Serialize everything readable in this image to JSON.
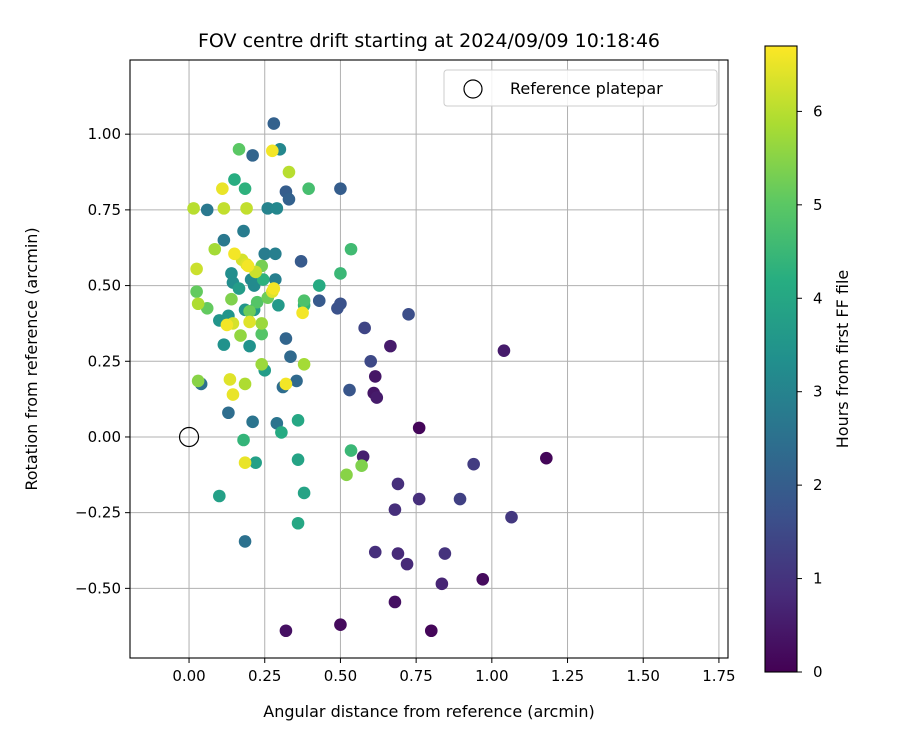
{
  "chart_data": {
    "type": "scatter",
    "title": "FOV centre drift starting at 2024/09/09 10:18:46",
    "xlabel": "Angular distance from reference (arcmin)",
    "ylabel": "Rotation from reference (arcmin)",
    "xlim": [
      -0.195,
      1.78
    ],
    "ylim": [
      -0.73,
      1.245
    ],
    "xticks": [
      0.0,
      0.25,
      0.5,
      0.75,
      1.0,
      1.25,
      1.5,
      1.75
    ],
    "xtick_labels": [
      "0.00",
      "0.25",
      "0.50",
      "0.75",
      "1.00",
      "1.25",
      "1.50",
      "1.75"
    ],
    "yticks": [
      -0.5,
      -0.25,
      0.0,
      0.25,
      0.5,
      0.75,
      1.0
    ],
    "ytick_labels": [
      "−0.50",
      "−0.25",
      "0.00",
      "0.25",
      "0.50",
      "0.75",
      "1.00"
    ],
    "grid": true,
    "legend": {
      "position": "top-right",
      "entries": [
        {
          "label": "Reference platepar",
          "marker": "open-circle"
        }
      ]
    },
    "reference_point": {
      "x": 0.0,
      "y": 0.0
    },
    "colorbar": {
      "label": "Hours from first FF file",
      "colormap": "viridis",
      "range": [
        0,
        6.7
      ],
      "ticks": [
        0,
        1,
        2,
        3,
        4,
        5,
        6
      ],
      "tick_labels": [
        "0",
        "1",
        "2",
        "3",
        "4",
        "5",
        "6"
      ]
    },
    "points": [
      {
        "x": 0.76,
        "y": 0.03,
        "h": 0.1
      },
      {
        "x": 1.18,
        "y": -0.07,
        "h": 0.1
      },
      {
        "x": 0.97,
        "y": -0.47,
        "h": 0.2
      },
      {
        "x": 0.8,
        "y": -0.64,
        "h": 0.1
      },
      {
        "x": 0.5,
        "y": -0.62,
        "h": 0.2
      },
      {
        "x": 0.32,
        "y": -0.64,
        "h": 0.3
      },
      {
        "x": 0.68,
        "y": -0.545,
        "h": 0.3
      },
      {
        "x": 0.615,
        "y": 0.2,
        "h": 0.4
      },
      {
        "x": 0.61,
        "y": 0.145,
        "h": 0.4
      },
      {
        "x": 0.62,
        "y": 0.13,
        "h": 0.5
      },
      {
        "x": 0.665,
        "y": 0.3,
        "h": 0.5
      },
      {
        "x": 1.04,
        "y": 0.285,
        "h": 0.5
      },
      {
        "x": 0.575,
        "y": -0.065,
        "h": 0.6
      },
      {
        "x": 0.835,
        "y": -0.485,
        "h": 0.7
      },
      {
        "x": 0.69,
        "y": -0.385,
        "h": 0.8
      },
      {
        "x": 0.72,
        "y": -0.42,
        "h": 0.8
      },
      {
        "x": 0.68,
        "y": -0.24,
        "h": 0.9
      },
      {
        "x": 0.69,
        "y": -0.155,
        "h": 0.9
      },
      {
        "x": 0.76,
        "y": -0.205,
        "h": 0.9
      },
      {
        "x": 0.615,
        "y": -0.38,
        "h": 0.9
      },
      {
        "x": 0.845,
        "y": -0.385,
        "h": 1.0
      },
      {
        "x": 1.065,
        "y": -0.265,
        "h": 1.1
      },
      {
        "x": 0.94,
        "y": -0.09,
        "h": 1.2
      },
      {
        "x": 0.895,
        "y": -0.205,
        "h": 1.3
      },
      {
        "x": 0.58,
        "y": 0.36,
        "h": 1.4
      },
      {
        "x": 0.6,
        "y": 0.25,
        "h": 1.5
      },
      {
        "x": 0.725,
        "y": 0.405,
        "h": 1.6
      },
      {
        "x": 0.5,
        "y": 0.44,
        "h": 1.7
      },
      {
        "x": 0.49,
        "y": 0.425,
        "h": 1.7
      },
      {
        "x": 0.53,
        "y": 0.155,
        "h": 1.8
      },
      {
        "x": 0.43,
        "y": 0.45,
        "h": 1.9
      },
      {
        "x": 0.37,
        "y": 0.58,
        "h": 1.9
      },
      {
        "x": 0.5,
        "y": 0.82,
        "h": 2.0
      },
      {
        "x": 0.32,
        "y": 0.81,
        "h": 2.0
      },
      {
        "x": 0.33,
        "y": 0.785,
        "h": 2.1
      },
      {
        "x": 0.28,
        "y": 1.035,
        "h": 2.1
      },
      {
        "x": 0.21,
        "y": 0.93,
        "h": 2.2
      },
      {
        "x": 0.32,
        "y": 0.325,
        "h": 2.2
      },
      {
        "x": 0.335,
        "y": 0.265,
        "h": 2.3
      },
      {
        "x": 0.355,
        "y": 0.185,
        "h": 2.3
      },
      {
        "x": 0.31,
        "y": 0.165,
        "h": 2.4
      },
      {
        "x": 0.13,
        "y": 0.08,
        "h": 2.4
      },
      {
        "x": 0.04,
        "y": 0.175,
        "h": 2.5
      },
      {
        "x": 0.185,
        "y": -0.345,
        "h": 2.5
      },
      {
        "x": 0.21,
        "y": 0.05,
        "h": 2.6
      },
      {
        "x": 0.29,
        "y": 0.045,
        "h": 2.6
      },
      {
        "x": 0.06,
        "y": 0.75,
        "h": 2.7
      },
      {
        "x": 0.115,
        "y": 0.65,
        "h": 2.7
      },
      {
        "x": 0.18,
        "y": 0.68,
        "h": 2.8
      },
      {
        "x": 0.25,
        "y": 0.605,
        "h": 2.8
      },
      {
        "x": 0.285,
        "y": 0.605,
        "h": 2.9
      },
      {
        "x": 0.285,
        "y": 0.52,
        "h": 2.9
      },
      {
        "x": 0.26,
        "y": 0.755,
        "h": 3.0
      },
      {
        "x": 0.29,
        "y": 0.755,
        "h": 3.1
      },
      {
        "x": 0.3,
        "y": 0.95,
        "h": 3.1
      },
      {
        "x": 0.215,
        "y": 0.5,
        "h": 3.2
      },
      {
        "x": 0.205,
        "y": 0.52,
        "h": 3.2
      },
      {
        "x": 0.14,
        "y": 0.54,
        "h": 3.3
      },
      {
        "x": 0.145,
        "y": 0.51,
        "h": 3.3
      },
      {
        "x": 0.2,
        "y": 0.3,
        "h": 3.4
      },
      {
        "x": 0.115,
        "y": 0.305,
        "h": 3.4
      },
      {
        "x": 0.1,
        "y": 0.385,
        "h": 3.5
      },
      {
        "x": 0.13,
        "y": 0.4,
        "h": 3.5
      },
      {
        "x": 0.185,
        "y": 0.42,
        "h": 3.5
      },
      {
        "x": 0.295,
        "y": 0.435,
        "h": 3.6
      },
      {
        "x": 0.215,
        "y": 0.42,
        "h": 3.6
      },
      {
        "x": 0.165,
        "y": 0.49,
        "h": 3.7
      },
      {
        "x": 0.25,
        "y": 0.22,
        "h": 3.7
      },
      {
        "x": 0.22,
        "y": -0.085,
        "h": 3.8
      },
      {
        "x": 0.1,
        "y": -0.195,
        "h": 3.8
      },
      {
        "x": 0.36,
        "y": -0.075,
        "h": 3.9
      },
      {
        "x": 0.38,
        "y": -0.185,
        "h": 3.9
      },
      {
        "x": 0.36,
        "y": -0.285,
        "h": 4.0
      },
      {
        "x": 0.36,
        "y": 0.055,
        "h": 4.0
      },
      {
        "x": 0.305,
        "y": 0.015,
        "h": 4.1
      },
      {
        "x": 0.43,
        "y": 0.5,
        "h": 4.1
      },
      {
        "x": 0.15,
        "y": 0.85,
        "h": 4.2
      },
      {
        "x": 0.185,
        "y": 0.82,
        "h": 4.3
      },
      {
        "x": 0.245,
        "y": 0.52,
        "h": 4.3
      },
      {
        "x": 0.18,
        "y": -0.01,
        "h": 4.4
      },
      {
        "x": 0.38,
        "y": 0.435,
        "h": 4.4
      },
      {
        "x": 0.5,
        "y": 0.54,
        "h": 4.5
      },
      {
        "x": 0.535,
        "y": -0.045,
        "h": 4.5
      },
      {
        "x": 0.535,
        "y": 0.62,
        "h": 4.6
      },
      {
        "x": 0.395,
        "y": 0.82,
        "h": 4.7
      },
      {
        "x": 0.38,
        "y": 0.45,
        "h": 4.8
      },
      {
        "x": 0.24,
        "y": 0.34,
        "h": 4.9
      },
      {
        "x": 0.225,
        "y": 0.445,
        "h": 4.9
      },
      {
        "x": 0.165,
        "y": 0.95,
        "h": 5.0
      },
      {
        "x": 0.025,
        "y": 0.48,
        "h": 5.1
      },
      {
        "x": 0.06,
        "y": 0.425,
        "h": 5.1
      },
      {
        "x": 0.2,
        "y": 0.415,
        "h": 5.2
      },
      {
        "x": 0.26,
        "y": 0.46,
        "h": 5.2
      },
      {
        "x": 0.24,
        "y": 0.565,
        "h": 5.3
      },
      {
        "x": 0.14,
        "y": 0.455,
        "h": 5.4
      },
      {
        "x": 0.57,
        "y": -0.095,
        "h": 5.4
      },
      {
        "x": 0.52,
        "y": -0.125,
        "h": 5.5
      },
      {
        "x": 0.03,
        "y": 0.185,
        "h": 5.5
      },
      {
        "x": 0.17,
        "y": 0.335,
        "h": 5.6
      },
      {
        "x": 0.24,
        "y": 0.375,
        "h": 5.7
      },
      {
        "x": 0.24,
        "y": 0.24,
        "h": 5.7
      },
      {
        "x": 0.38,
        "y": 0.24,
        "h": 5.8
      },
      {
        "x": 0.085,
        "y": 0.62,
        "h": 5.8
      },
      {
        "x": 0.185,
        "y": 0.175,
        "h": 5.9
      },
      {
        "x": 0.03,
        "y": 0.44,
        "h": 5.9
      },
      {
        "x": 0.33,
        "y": 0.875,
        "h": 6.0
      },
      {
        "x": 0.015,
        "y": 0.755,
        "h": 6.0
      },
      {
        "x": 0.19,
        "y": 0.755,
        "h": 6.1
      },
      {
        "x": 0.115,
        "y": 0.755,
        "h": 6.1
      },
      {
        "x": 0.025,
        "y": 0.555,
        "h": 6.2
      },
      {
        "x": 0.22,
        "y": 0.545,
        "h": 6.2
      },
      {
        "x": 0.145,
        "y": 0.375,
        "h": 6.3
      },
      {
        "x": 0.175,
        "y": 0.585,
        "h": 6.3
      },
      {
        "x": 0.19,
        "y": 0.57,
        "h": 6.4
      },
      {
        "x": 0.275,
        "y": 0.48,
        "h": 6.4
      },
      {
        "x": 0.2,
        "y": 0.38,
        "h": 6.4
      },
      {
        "x": 0.135,
        "y": 0.19,
        "h": 6.4
      },
      {
        "x": 0.145,
        "y": 0.14,
        "h": 6.5
      },
      {
        "x": 0.185,
        "y": -0.085,
        "h": 6.5
      },
      {
        "x": 0.11,
        "y": 0.82,
        "h": 6.5
      },
      {
        "x": 0.275,
        "y": 0.945,
        "h": 6.6
      },
      {
        "x": 0.15,
        "y": 0.605,
        "h": 6.6
      },
      {
        "x": 0.195,
        "y": 0.565,
        "h": 6.6
      },
      {
        "x": 0.28,
        "y": 0.49,
        "h": 6.6
      },
      {
        "x": 0.125,
        "y": 0.37,
        "h": 6.6
      },
      {
        "x": 0.32,
        "y": 0.175,
        "h": 6.6
      },
      {
        "x": 0.375,
        "y": 0.41,
        "h": 6.6
      }
    ]
  }
}
